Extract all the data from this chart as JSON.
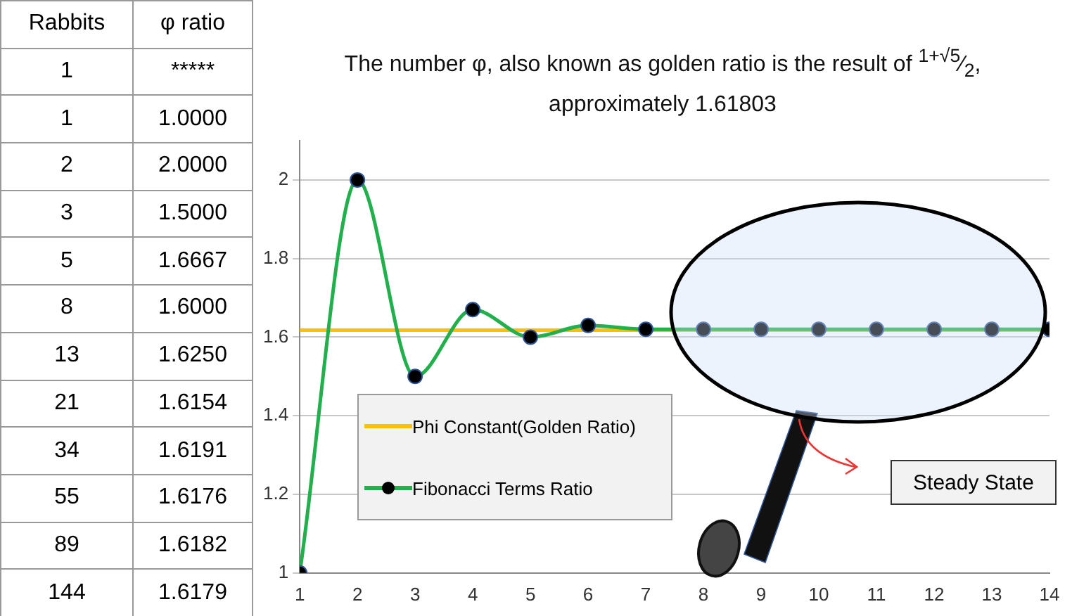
{
  "chart_data": {
    "type": "line",
    "title": "The number φ, also known as golden ratio is the result of $^{1+√5}$⁄$_{2}$,",
    "subtitle": "approximately 1.61803",
    "x": [
      1,
      2,
      3,
      4,
      5,
      6,
      7,
      8,
      9,
      10,
      11,
      12,
      13,
      14
    ],
    "series": [
      {
        "name": "Fibonacci Terms Ratio",
        "color": "#21b04b",
        "values": [
          1.0,
          2.0,
          1.5,
          1.67,
          1.6,
          1.63,
          1.62,
          1.62,
          1.62,
          1.62,
          1.62,
          1.62,
          1.62,
          1.62
        ]
      }
    ],
    "ref_lines": [
      {
        "axis": "y",
        "value": 1.61803,
        "label": "Phi Constant(Golden Ratio)",
        "color": "#ffc000"
      }
    ],
    "annotations": [
      "Rabbits",
      "φ ratio",
      "1",
      "1",
      "2",
      "3",
      "5",
      "8",
      "13",
      "21",
      "34",
      "55",
      "89",
      "144",
      "*****",
      "1.0000",
      "2.0000",
      "1.5000",
      "1.6667",
      "1.6000",
      "1.6250",
      "1.6154",
      "1.6191",
      "1.6176",
      "1.6182",
      "1.6179",
      "Steady State"
    ],
    "xlim": [
      1,
      14
    ],
    "xticks": [
      1,
      2,
      3,
      4,
      5,
      6,
      7,
      8,
      9,
      10,
      11,
      12,
      13,
      14
    ],
    "ylim": [
      1,
      2.1
    ],
    "yticks": [
      1,
      1.2,
      1.4,
      1.6,
      1.8,
      2
    ],
    "grid": "y",
    "legend": "bottom left",
    "marker": "circle",
    "line_style": "solid"
  }
}
